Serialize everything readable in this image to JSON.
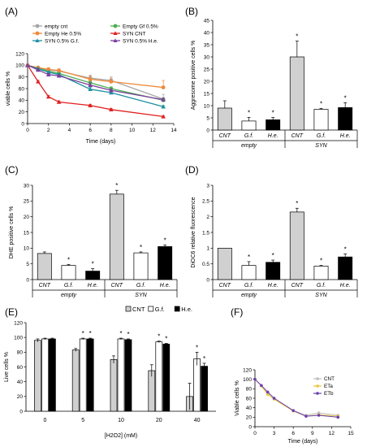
{
  "chart_data": [
    {
      "panel": "(A)",
      "type": "line",
      "xlabel": "Time (days)",
      "ylabel": "viable cells %",
      "xlim": [
        0,
        14
      ],
      "ylim": [
        0,
        120
      ],
      "xticks": [
        0,
        2,
        4,
        6,
        8,
        10,
        12,
        14
      ],
      "yticks": [
        0,
        20,
        40,
        60,
        80,
        100,
        120
      ],
      "legend_position": "top",
      "series": [
        {
          "name": "empty cnt",
          "color": "#a6a6a6",
          "marker": "circle",
          "x": [
            0,
            1,
            2,
            3,
            6,
            8,
            13
          ],
          "y": [
            100,
            96,
            92,
            90,
            78,
            74,
            42
          ],
          "err": [
            0,
            2,
            2,
            3,
            5,
            6,
            8
          ]
        },
        {
          "name": "Empty Gf 0.5%",
          "color": "#4caf50",
          "marker": "circle",
          "x": [
            0,
            1,
            2,
            3,
            6,
            8,
            13
          ],
          "y": [
            100,
            95,
            90,
            86,
            70,
            60,
            40
          ],
          "err": [
            0,
            2,
            2,
            2,
            3,
            3,
            3
          ]
        },
        {
          "name": "Empty He 0.5%",
          "color": "#f08a3c",
          "marker": "circle",
          "x": [
            0,
            1,
            2,
            3,
            6,
            8,
            13
          ],
          "y": [
            100,
            96,
            93,
            91,
            76,
            72,
            62
          ],
          "err": [
            0,
            2,
            3,
            3,
            6,
            6,
            12
          ]
        },
        {
          "name": "SYN CNT",
          "color": "#e02020",
          "marker": "triangle",
          "x": [
            0,
            1,
            2,
            3,
            6,
            8,
            13
          ],
          "y": [
            100,
            72,
            46,
            37,
            31,
            24,
            12
          ],
          "err": [
            0,
            2,
            2,
            2,
            2,
            2,
            1
          ]
        },
        {
          "name": "SYN 0.5% G.f.",
          "color": "#1e8fa0",
          "marker": "triangle",
          "x": [
            0,
            1,
            2,
            3,
            6,
            8,
            13
          ],
          "y": [
            100,
            94,
            88,
            84,
            59,
            53,
            29
          ],
          "err": [
            0,
            2,
            2,
            2,
            3,
            3,
            2
          ]
        },
        {
          "name": "SYN 0.5% H.e.",
          "color": "#7b3f9e",
          "marker": "triangle",
          "x": [
            0,
            1,
            2,
            3,
            6,
            8,
            13
          ],
          "y": [
            100,
            92,
            84,
            82,
            66,
            57,
            41
          ],
          "err": [
            0,
            2,
            2,
            2,
            4,
            3,
            3
          ]
        }
      ]
    },
    {
      "panel": "(B)",
      "type": "bar",
      "ylabel": "Aggresome positive cells %",
      "ylim": [
        0,
        45
      ],
      "yticks": [
        0,
        5,
        10,
        15,
        20,
        25,
        30,
        35,
        40,
        45
      ],
      "categories": [
        "CNT",
        "G.f.",
        "H.e.",
        "CNT",
        "G.f.",
        "H.e."
      ],
      "groups": [
        "empty",
        "SYN"
      ],
      "values": [
        9,
        3.7,
        4.2,
        30,
        8.5,
        9.2
      ],
      "errors": [
        3,
        1.5,
        1,
        6.5,
        0.4,
        2
      ],
      "significance": [
        "",
        "*",
        "*",
        "*",
        "*",
        "*"
      ],
      "colors": [
        "#d0d0d0",
        "#ffffff",
        "#000000",
        "#d0d0d0",
        "#ffffff",
        "#000000"
      ]
    },
    {
      "panel": "(C)",
      "type": "bar",
      "ylabel": "DHE positive cells %",
      "ylim": [
        0,
        30
      ],
      "yticks": [
        0,
        5,
        10,
        15,
        20,
        25,
        30
      ],
      "categories": [
        "CNT",
        "G.f.",
        "H.e.",
        "CNT",
        "G.f.",
        "H.e."
      ],
      "groups": [
        "empty",
        "SYN"
      ],
      "values": [
        8.3,
        4.5,
        2.7,
        27.2,
        8.5,
        10.5
      ],
      "errors": [
        0.5,
        0.3,
        0.8,
        1.2,
        0.3,
        0.5
      ],
      "significance": [
        "",
        "*",
        "*",
        "*",
        "*",
        "*"
      ],
      "colors": [
        "#d0d0d0",
        "#ffffff",
        "#000000",
        "#d0d0d0",
        "#ffffff",
        "#000000"
      ]
    },
    {
      "panel": "(D)",
      "type": "bar",
      "ylabel": "DiOC6 relative fluorescence",
      "ylim": [
        0,
        3
      ],
      "yticks": [
        0,
        0.5,
        1,
        1.5,
        2,
        2.5,
        3
      ],
      "categories": [
        "CNT",
        "G.f.",
        "H.e.",
        "CNT",
        "G.f.",
        "H.e."
      ],
      "groups": [
        "empty",
        "SYN"
      ],
      "values": [
        1.0,
        0.45,
        0.55,
        2.15,
        0.43,
        0.72
      ],
      "errors": [
        0,
        0.12,
        0.07,
        0.12,
        0.02,
        0.1
      ],
      "significance": [
        "",
        "*",
        "*",
        "*",
        "*",
        "*"
      ],
      "colors": [
        "#d0d0d0",
        "#ffffff",
        "#000000",
        "#d0d0d0",
        "#ffffff",
        "#000000"
      ]
    },
    {
      "panel": "(E)",
      "type": "bar",
      "xlabel": "[H2O2] (mM)",
      "ylabel": "Live cells %",
      "ylim": [
        0,
        120
      ],
      "yticks": [
        0,
        20,
        40,
        60,
        80,
        100,
        120
      ],
      "categories": [
        "0",
        "5",
        "10",
        "20",
        "40"
      ],
      "legend_position": "top-right",
      "series": [
        {
          "name": "CNT",
          "color": "#d0d0d0",
          "values": [
            96,
            83,
            70,
            55,
            20
          ],
          "errors": [
            2,
            2,
            5,
            8,
            18
          ],
          "significance": [
            "",
            "",
            "",
            "",
            ""
          ]
        },
        {
          "name": "G.f.",
          "color": "#ffffff",
          "values": [
            98,
            98,
            98,
            94,
            71
          ],
          "errors": [
            1,
            1,
            1,
            1,
            9
          ],
          "significance": [
            "",
            "*",
            "*",
            "*",
            "*"
          ]
        },
        {
          "name": "H.e.",
          "color": "#000000",
          "values": [
            98,
            98,
            97,
            91,
            61
          ],
          "errors": [
            1,
            1,
            1,
            1,
            4
          ],
          "significance": [
            "",
            "*",
            "*",
            "*",
            "*"
          ]
        }
      ]
    },
    {
      "panel": "(F)",
      "type": "line",
      "xlabel": "Time (days)",
      "ylabel": "Viable cells %",
      "xlim": [
        0,
        15
      ],
      "ylim": [
        0,
        120
      ],
      "xticks": [
        0,
        3,
        6,
        9,
        12,
        15
      ],
      "yticks": [
        0,
        20,
        40,
        60,
        80,
        100,
        120
      ],
      "legend_position": "right",
      "series": [
        {
          "name": "CNT",
          "color": "#bdbdbd",
          "x": [
            0,
            1,
            2,
            3,
            6,
            8,
            10,
            13
          ],
          "y": [
            100,
            86,
            72,
            60,
            34,
            24,
            29,
            24
          ]
        },
        {
          "name": "ETa",
          "color": "#e8c83a",
          "x": [
            0,
            1,
            2,
            3,
            6,
            8,
            10,
            13
          ],
          "y": [
            100,
            86,
            68,
            58,
            33,
            22,
            25,
            22
          ]
        },
        {
          "name": "ETb",
          "color": "#6a3fb4",
          "x": [
            0,
            1,
            2,
            3,
            6,
            8,
            10,
            13
          ],
          "y": [
            100,
            87,
            73,
            60,
            34,
            22,
            24,
            20
          ]
        }
      ]
    }
  ]
}
